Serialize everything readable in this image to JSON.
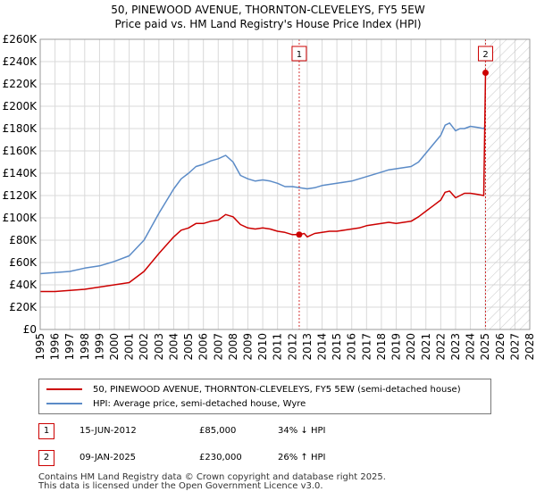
{
  "header": {
    "title": "50, PINEWOOD AVENUE, THORNTON-CLEVELEYS, FY5 5EW",
    "subtitle": "Price paid vs. HM Land Registry's House Price Index (HPI)"
  },
  "chart_data": {
    "type": "line",
    "title": "50, PINEWOOD AVENUE, THORNTON-CLEVELEYS, FY5 5EW",
    "subtitle": "Price paid vs. HM Land Registry's House Price Index (HPI)",
    "xlim": [
      1995,
      2028
    ],
    "ylim": [
      0,
      260000
    ],
    "y_ticks": [
      0,
      20000,
      40000,
      60000,
      80000,
      100000,
      120000,
      140000,
      160000,
      180000,
      200000,
      220000,
      240000,
      260000
    ],
    "y_tick_labels": [
      "£0",
      "£20K",
      "£40K",
      "£60K",
      "£80K",
      "£100K",
      "£120K",
      "£140K",
      "£160K",
      "£180K",
      "£200K",
      "£220K",
      "£240K",
      "£260K"
    ],
    "x_ticks": [
      1995,
      1996,
      1997,
      1998,
      1999,
      2000,
      2001,
      2002,
      2003,
      2004,
      2005,
      2006,
      2007,
      2008,
      2009,
      2010,
      2011,
      2012,
      2013,
      2014,
      2015,
      2016,
      2017,
      2018,
      2019,
      2020,
      2021,
      2022,
      2023,
      2024,
      2025,
      2026,
      2027,
      2028
    ],
    "x_tick_labels": [
      "1995",
      "1996",
      "1997",
      "1998",
      "1999",
      "2000",
      "2001",
      "2002",
      "2003",
      "2004",
      "2005",
      "2006",
      "2007",
      "2008",
      "2009",
      "2010",
      "2011",
      "2012",
      "2013",
      "2014",
      "2015",
      "2016",
      "2017",
      "2018",
      "2019",
      "2020",
      "2021",
      "2022",
      "2023",
      "2024",
      "2025",
      "2026",
      "2027",
      "2028"
    ],
    "grid": true,
    "hatched_future_from": 2025.1,
    "series": [
      {
        "name": "50, PINEWOOD AVENUE, THORNTON-CLEVELEYS, FY5 5EW (semi-detached house)",
        "color": "#cc0000",
        "x": [
          1995.0,
          1996.0,
          1997.0,
          1998.0,
          1999.0,
          2000.0,
          2001.0,
          2002.0,
          2003.0,
          2004.0,
          2004.5,
          2005.0,
          2005.5,
          2006.0,
          2006.5,
          2007.0,
          2007.5,
          2008.0,
          2008.5,
          2009.0,
          2009.5,
          2010.0,
          2010.5,
          2011.0,
          2011.5,
          2012.0,
          2012.46,
          2012.8,
          2013.0,
          2013.5,
          2014.0,
          2014.5,
          2015.0,
          2015.5,
          2016.0,
          2016.5,
          2017.0,
          2017.5,
          2018.0,
          2018.5,
          2019.0,
          2019.5,
          2020.0,
          2020.5,
          2021.0,
          2021.5,
          2022.0,
          2022.3,
          2022.6,
          2023.0,
          2023.3,
          2023.6,
          2024.0,
          2024.5,
          2024.9,
          2025.02,
          2025.1
        ],
        "y": [
          34000,
          34000,
          35000,
          36000,
          38000,
          40000,
          42000,
          52000,
          68000,
          83000,
          89000,
          91000,
          95000,
          95000,
          97000,
          98000,
          103000,
          101000,
          94000,
          91000,
          90000,
          91000,
          90000,
          88000,
          87000,
          85000,
          85000,
          86000,
          83000,
          86000,
          87000,
          88000,
          88000,
          89000,
          90000,
          91000,
          93000,
          94000,
          95000,
          96000,
          95000,
          96000,
          97000,
          101000,
          106000,
          111000,
          116000,
          123000,
          124000,
          118000,
          120000,
          122000,
          122000,
          121000,
          120000,
          230000,
          231000
        ]
      },
      {
        "name": "HPI: Average price, semi-detached house, Wyre",
        "color": "#5b8bc7",
        "x": [
          1995.0,
          1996.0,
          1997.0,
          1998.0,
          1999.0,
          2000.0,
          2001.0,
          2002.0,
          2003.0,
          2004.0,
          2004.5,
          2005.0,
          2005.5,
          2006.0,
          2006.5,
          2007.0,
          2007.5,
          2008.0,
          2008.5,
          2009.0,
          2009.5,
          2010.0,
          2010.5,
          2011.0,
          2011.5,
          2012.0,
          2012.5,
          2013.0,
          2013.5,
          2014.0,
          2014.5,
          2015.0,
          2015.5,
          2016.0,
          2016.5,
          2017.0,
          2017.5,
          2018.0,
          2018.5,
          2019.0,
          2019.5,
          2020.0,
          2020.5,
          2021.0,
          2021.5,
          2022.0,
          2022.3,
          2022.6,
          2023.0,
          2023.3,
          2023.6,
          2024.0,
          2024.5,
          2024.9,
          2025.0
        ],
        "y": [
          50000,
          51000,
          52000,
          55000,
          57000,
          61000,
          66000,
          80000,
          104000,
          126000,
          135000,
          140000,
          146000,
          148000,
          151000,
          153000,
          156000,
          150000,
          138000,
          135000,
          133000,
          134000,
          133000,
          131000,
          128000,
          128000,
          127000,
          126000,
          127000,
          129000,
          130000,
          131000,
          132000,
          133000,
          135000,
          137000,
          139000,
          141000,
          143000,
          144000,
          145000,
          146000,
          150000,
          158000,
          166000,
          174000,
          183000,
          185000,
          178000,
          180000,
          180000,
          182000,
          181000,
          180000,
          182000
        ]
      }
    ],
    "annotations": [
      {
        "label": "1",
        "x": 2012.46,
        "y": 85000
      },
      {
        "label": "2",
        "x": 2025.02,
        "y": 230000
      }
    ]
  },
  "legend": {
    "items": [
      {
        "label": "50, PINEWOOD AVENUE, THORNTON-CLEVELEYS, FY5 5EW (semi-detached house)",
        "color": "#cc0000"
      },
      {
        "label": "HPI: Average price, semi-detached house, Wyre",
        "color": "#5b8bc7"
      }
    ]
  },
  "sales": [
    {
      "num": "1",
      "date": "15-JUN-2012",
      "price": "£85,000",
      "hpi": "34% ↓ HPI"
    },
    {
      "num": "2",
      "date": "09-JAN-2025",
      "price": "£230,000",
      "hpi": "26% ↑ HPI"
    }
  ],
  "footer": {
    "line1": "Contains HM Land Registry data © Crown copyright and database right 2025.",
    "line2": "This data is licensed under the Open Government Licence v3.0."
  }
}
